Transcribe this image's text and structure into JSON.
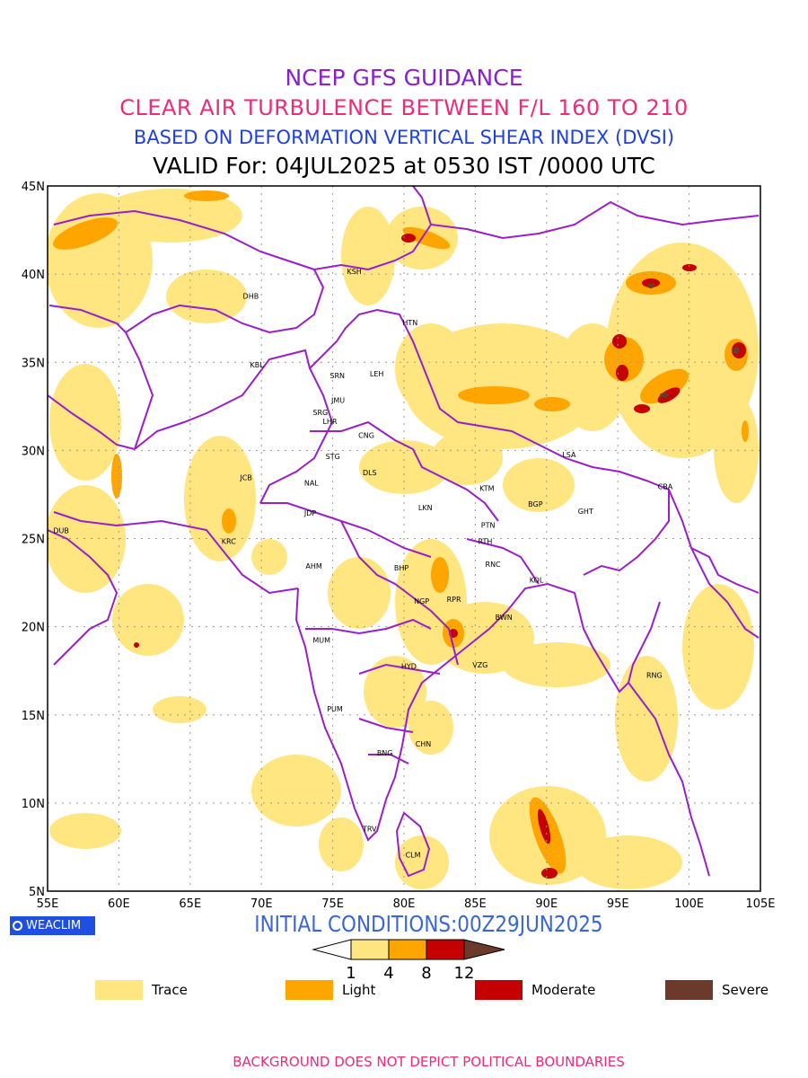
{
  "header": {
    "line1": "NCEP GFS GUIDANCE",
    "line2": "CLEAR AIR TURBULENCE BETWEEN F/L 160 TO 210",
    "line3": "BASED ON DEFORMATION VERTICAL SHEAR INDEX (DVSI)",
    "line4": "VALID For: 04JUL2025 at 0530 IST /0000 UTC"
  },
  "colors": {
    "line1": "#8a1fd0",
    "line2": "#ee2a7b",
    "line3": "#1f3fe6",
    "trace": "#ffe680",
    "light": "#ffa500",
    "moderate": "#c40000",
    "severe": "#6b3a2a",
    "boundary": "#9a1fc9"
  },
  "map": {
    "lon_labels": [
      "55E",
      "60E",
      "65E",
      "70E",
      "75E",
      "80E",
      "85E",
      "90E",
      "95E",
      "100E",
      "105E"
    ],
    "lat_labels": [
      "45N",
      "40N",
      "35N",
      "30N",
      "25N",
      "20N",
      "15N",
      "10N",
      "5N"
    ],
    "stations": [
      {
        "code": "KSH",
        "lon": 76.0,
        "lat": 40.0
      },
      {
        "code": "DHB",
        "lon": 68.7,
        "lat": 38.6
      },
      {
        "code": "HTN",
        "lon": 79.9,
        "lat": 37.1
      },
      {
        "code": "KBL",
        "lon": 69.2,
        "lat": 34.7
      },
      {
        "code": "SRN",
        "lon": 74.8,
        "lat": 34.1
      },
      {
        "code": "LEH",
        "lon": 77.6,
        "lat": 34.2
      },
      {
        "code": "JMU",
        "lon": 74.9,
        "lat": 32.7
      },
      {
        "code": "SRG",
        "lon": 73.6,
        "lat": 32.0
      },
      {
        "code": "LHR",
        "lon": 74.3,
        "lat": 31.5
      },
      {
        "code": "CNG",
        "lon": 76.8,
        "lat": 30.7
      },
      {
        "code": "STG",
        "lon": 74.5,
        "lat": 29.5
      },
      {
        "code": "DLS",
        "lon": 77.1,
        "lat": 28.6
      },
      {
        "code": "NAL",
        "lon": 73.0,
        "lat": 28.0
      },
      {
        "code": "JCB",
        "lon": 68.5,
        "lat": 28.3
      },
      {
        "code": "LSA",
        "lon": 91.1,
        "lat": 29.6
      },
      {
        "code": "KTM",
        "lon": 85.3,
        "lat": 27.7
      },
      {
        "code": "CBA",
        "lon": 97.8,
        "lat": 27.8
      },
      {
        "code": "LKN",
        "lon": 81.0,
        "lat": 26.6
      },
      {
        "code": "BGP",
        "lon": 88.7,
        "lat": 26.8
      },
      {
        "code": "GHT",
        "lon": 92.2,
        "lat": 26.4
      },
      {
        "code": "JDP",
        "lon": 73.0,
        "lat": 26.3
      },
      {
        "code": "PTN",
        "lon": 85.4,
        "lat": 25.6
      },
      {
        "code": "DUB",
        "lon": 55.4,
        "lat": 25.3
      },
      {
        "code": "RTH",
        "lon": 85.2,
        "lat": 24.7
      },
      {
        "code": "KRC",
        "lon": 67.2,
        "lat": 24.7
      },
      {
        "code": "BHP",
        "lon": 79.3,
        "lat": 23.2
      },
      {
        "code": "AHM",
        "lon": 73.1,
        "lat": 23.3
      },
      {
        "code": "RNC",
        "lon": 85.7,
        "lat": 23.4
      },
      {
        "code": "KOL",
        "lon": 88.8,
        "lat": 22.5
      },
      {
        "code": "NGP",
        "lon": 80.7,
        "lat": 21.3
      },
      {
        "code": "RPR",
        "lon": 83.0,
        "lat": 21.4
      },
      {
        "code": "BWN",
        "lon": 86.4,
        "lat": 20.4
      },
      {
        "code": "MUM",
        "lon": 73.6,
        "lat": 19.1
      },
      {
        "code": "HYD",
        "lon": 79.8,
        "lat": 17.6
      },
      {
        "code": "VZG",
        "lon": 84.8,
        "lat": 17.7
      },
      {
        "code": "RNG",
        "lon": 97.0,
        "lat": 17.1
      },
      {
        "code": "PUM",
        "lon": 74.6,
        "lat": 15.2
      },
      {
        "code": "CHN",
        "lon": 80.8,
        "lat": 13.2
      },
      {
        "code": "BNG",
        "lon": 78.1,
        "lat": 12.7
      },
      {
        "code": "TRV",
        "lon": 77.1,
        "lat": 8.4
      },
      {
        "code": "CLM",
        "lon": 80.1,
        "lat": 6.9
      }
    ]
  },
  "logo": "WEACLIM",
  "initial_conditions": "INITIAL CONDITIONS:00Z29JUN2025",
  "colorbar": {
    "ticks": [
      "1",
      "4",
      "8",
      "12"
    ]
  },
  "legend": [
    {
      "label": "Trace",
      "key": "trace"
    },
    {
      "label": "Light",
      "key": "light"
    },
    {
      "label": "Moderate",
      "key": "moderate"
    },
    {
      "label": "Severe",
      "key": "severe"
    }
  ],
  "footer": "BACKGROUND DOES NOT DEPICT POLITICAL BOUNDARIES",
  "footer_color": "#ee2a7b"
}
